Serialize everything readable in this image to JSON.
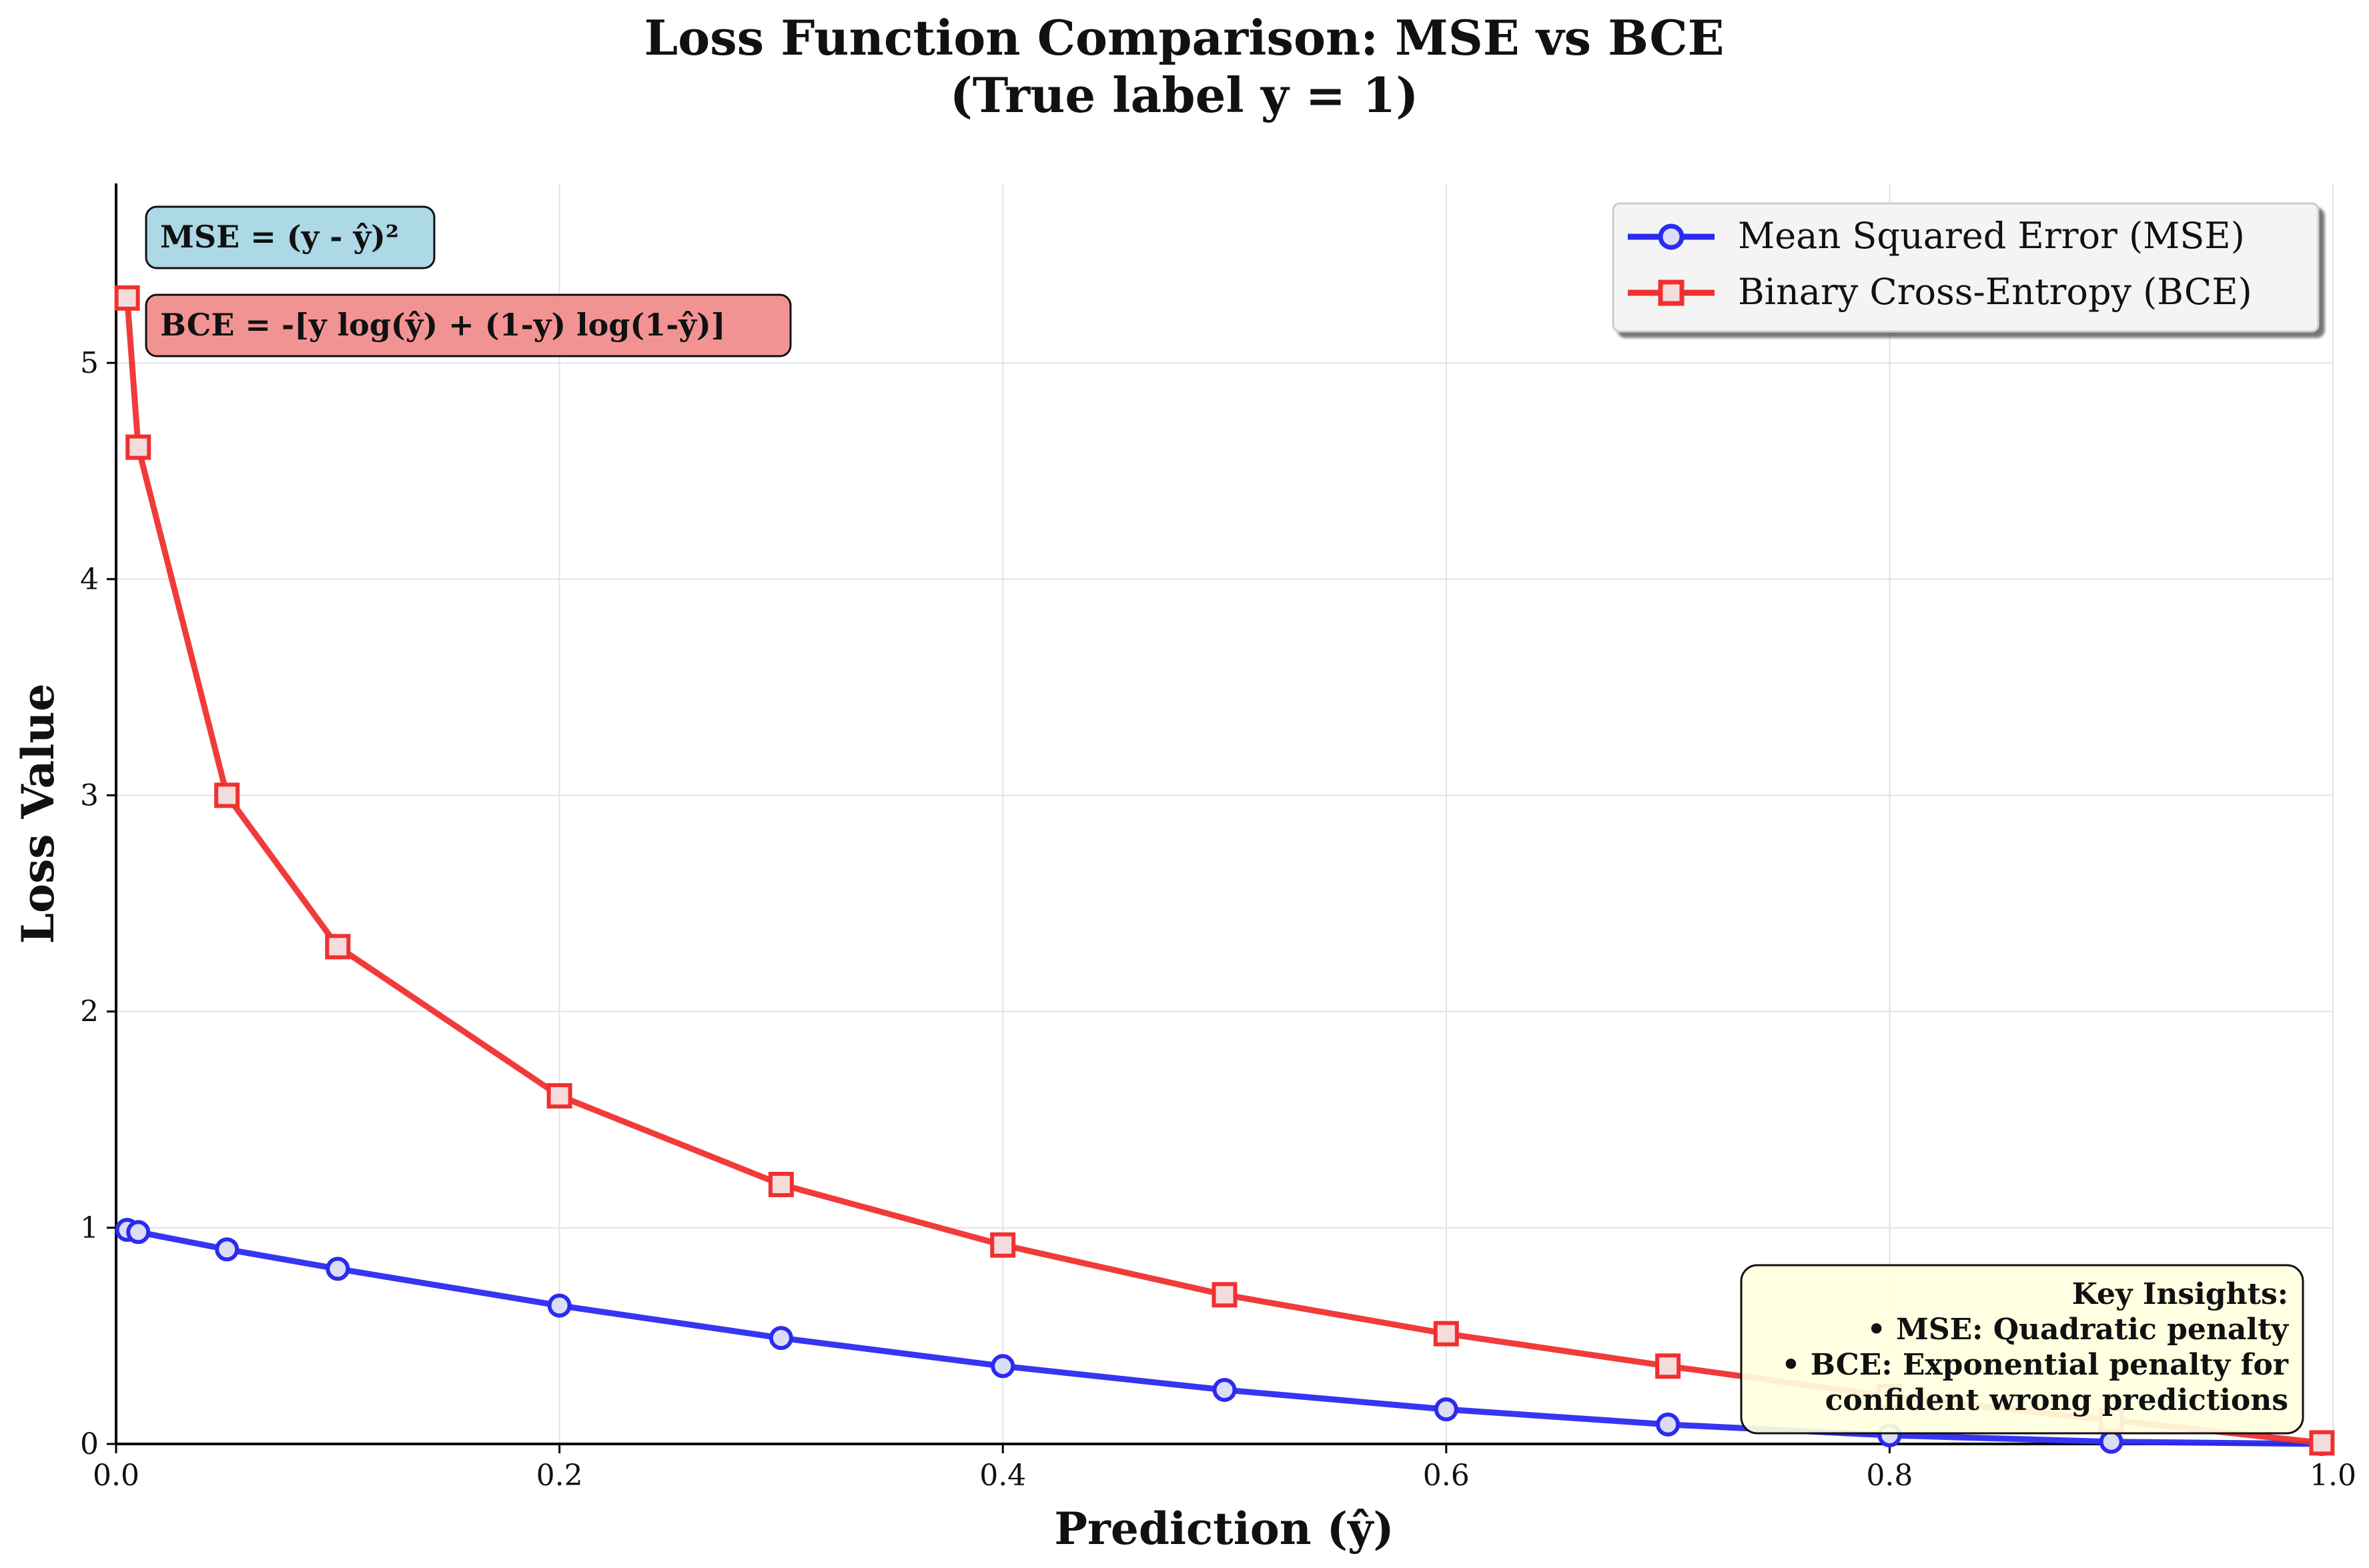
{
  "chart_data": {
    "type": "line",
    "title": "Loss Function Comparison: MSE vs BCE",
    "subtitle": "(True label y = 1)",
    "xlabel": "Prediction (ŷ)",
    "ylabel": "Loss Value",
    "xlim": [
      0.0,
      1.0
    ],
    "ylim": [
      0,
      5.83
    ],
    "x_ticks": [
      "0.0",
      "0.2",
      "0.4",
      "0.6",
      "0.8",
      "1.0"
    ],
    "y_ticks": [
      "0",
      "1",
      "2",
      "3",
      "4",
      "5"
    ],
    "grid": true,
    "legend_position": "upper right",
    "x": [
      0.005,
      0.01,
      0.05,
      0.1,
      0.2,
      0.3,
      0.4,
      0.5,
      0.6,
      0.7,
      0.8,
      0.9,
      0.995
    ],
    "series": [
      {
        "name": "Mean Squared Error (MSE)",
        "color": "#2b2bf0",
        "marker": "circle",
        "values": [
          0.99,
          0.98,
          0.9,
          0.81,
          0.64,
          0.49,
          0.36,
          0.25,
          0.16,
          0.09,
          0.04,
          0.01,
          0.0
        ]
      },
      {
        "name": "Binary Cross-Entropy (BCE)",
        "color": "#f03030",
        "marker": "square",
        "values": [
          5.3,
          4.61,
          3.0,
          2.3,
          1.61,
          1.2,
          0.92,
          0.69,
          0.51,
          0.36,
          0.22,
          0.11,
          0.005
        ]
      }
    ],
    "annotations": {
      "mse_formula": "MSE = (y - ŷ)²",
      "bce_formula": "BCE = -[y log(ŷ) + (1-y) log(1-ŷ)]",
      "insights": [
        "Key Insights:",
        "• MSE: Quadratic penalty",
        "• BCE: Exponential penalty for",
        "confident wrong predictions"
      ]
    },
    "colors": {
      "mse_box": "#add8e6",
      "bce_box": "#f08080",
      "insights_box": "#ffffe0"
    }
  }
}
